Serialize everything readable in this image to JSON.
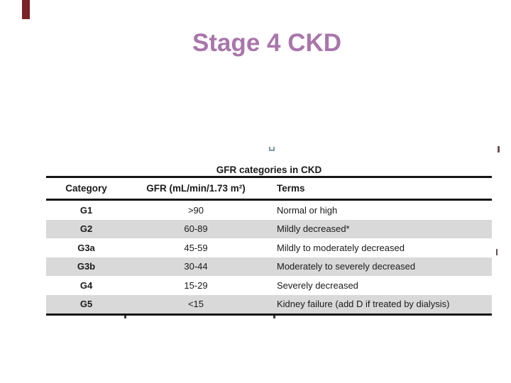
{
  "slide": {
    "title": "Stage 4 CKD",
    "title_color": "#a976ab"
  },
  "table": {
    "caption": "GFR categories in CKD",
    "columns": [
      "Category",
      "GFR (mL/min/1.73 m²)",
      "Terms"
    ],
    "rows": [
      {
        "category": "G1",
        "gfr": ">90",
        "terms": "Normal or high"
      },
      {
        "category": "G2",
        "gfr": "60-89",
        "terms": "Mildly decreased*"
      },
      {
        "category": "G3a",
        "gfr": "45-59",
        "terms": "Mildly to moderately decreased"
      },
      {
        "category": "G3b",
        "gfr": "30-44",
        "terms": "Moderately to severely decreased"
      },
      {
        "category": "G4",
        "gfr": "15-29",
        "terms": "Severely decreased"
      },
      {
        "category": "G5",
        "gfr": "<15",
        "terms": "Kidney failure (add D if treated by dialysis)"
      }
    ],
    "shaded_row_color": "#d9d9d9",
    "rule_color": "#151515",
    "text_color": "#1a1a1a"
  },
  "decorations": {
    "corner_bar_color": "#7b2127",
    "square_mark_color": "#7d9ba0",
    "edge_mark_color": "#6e5353",
    "tick_color": "#3f3f3f"
  }
}
